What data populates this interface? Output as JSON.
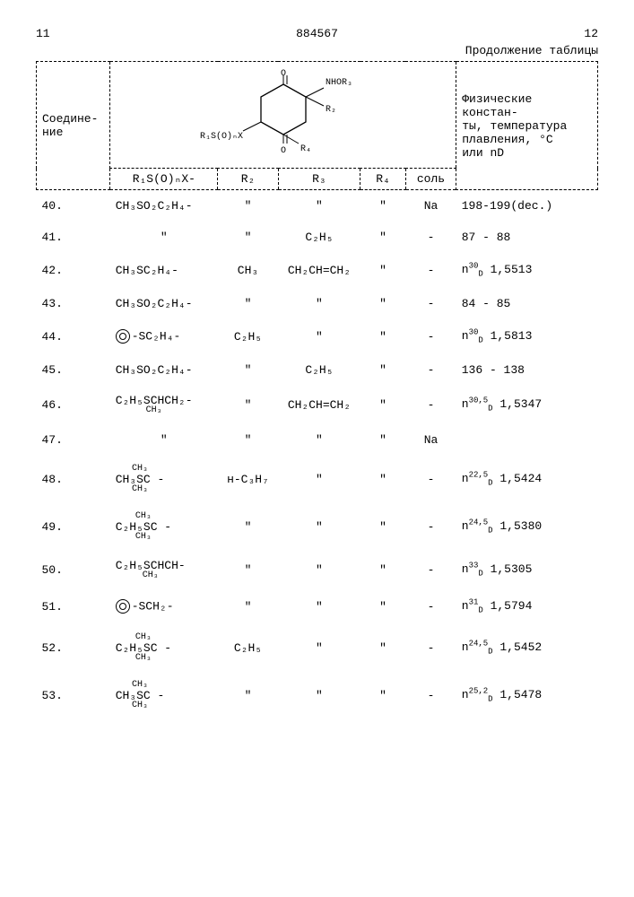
{
  "header": {
    "left_page": "11",
    "doc_number": "884567",
    "right_page": "12",
    "continuation": "Продолжение таблицы"
  },
  "columns": {
    "compound": "Соедине-\nние",
    "r1": "R₁S(O)ₙX-",
    "r2": "R₂",
    "r3": "R₃",
    "r4": "R₄",
    "salt": "соль",
    "phys": "Физические констан-\nты, температура\nплавления, °С\nили  nD"
  },
  "structure_labels": {
    "nw": "R₁S(O)ₙX",
    "r2": "R₂",
    "r3": "NHOR₃",
    "r4": "R₄",
    "o1": "O",
    "o2": "O"
  },
  "rows": [
    {
      "n": "40.",
      "r1": "CH₃SO₂C₂H₄-",
      "r2": "\"",
      "r3": "\"",
      "r4": "\"",
      "salt": "Na",
      "phys": "198-199(dec.)"
    },
    {
      "n": "41.",
      "r1": "\"",
      "r2": "\"",
      "r3": "C₂H₅",
      "r4": "\"",
      "salt": "-",
      "phys": "87 - 88"
    },
    {
      "n": "42.",
      "r1": "CH₃SC₂H₄-",
      "r2": "CH₃",
      "r3": "CH₂CH=CH₂",
      "r4": "\"",
      "salt": "-",
      "phys_nd": {
        "temp": "30",
        "val": "1,5513"
      }
    },
    {
      "n": "43.",
      "r1": "CH₃SO₂C₂H₄-",
      "r2": "\"",
      "r3": "\"",
      "r4": "\"",
      "salt": "-",
      "phys": "84 - 85"
    },
    {
      "n": "44.",
      "r1_phenyl": true,
      "r1": "-SC₂H₄-",
      "r2": "C₂H₅",
      "r3": "\"",
      "r4": "\"",
      "salt": "-",
      "phys_nd": {
        "temp": "30",
        "val": "1,5813"
      }
    },
    {
      "n": "45.",
      "r1": "CH₃SO₂C₂H₄-",
      "r2": "\"",
      "r3": "C₂H₅",
      "r4": "\"",
      "salt": "-",
      "phys": "136 - 138"
    },
    {
      "n": "46.",
      "r1_branch": {
        "mid": "C₂H₅SCHCH₂-",
        "bot": "CH₃"
      },
      "r2": "\"",
      "r3": "CH₂CH=CH₂",
      "r4": "\"",
      "salt": "-",
      "phys_nd": {
        "temp": "30,5",
        "val": "1,5347"
      }
    },
    {
      "n": "47.",
      "r1": "\"",
      "r2": "\"",
      "r3": "\"",
      "r4": "\"",
      "salt": "Na",
      "phys": ""
    },
    {
      "n": "48.",
      "r1_branch": {
        "top": "CH₃",
        "mid": "CH₃SC -",
        "bot": "CH₃"
      },
      "r2": "н-C₃H₇",
      "r3": "\"",
      "r4": "\"",
      "salt": "-",
      "phys_nd": {
        "temp": "22,5",
        "val": "1,5424"
      }
    },
    {
      "n": "49.",
      "r1_branch": {
        "mid": "C₂H₅SC -",
        "top": "CH₃",
        "bot": "CH₃"
      },
      "r2": "\"",
      "r3": "\"",
      "r4": "\"",
      "salt": "-",
      "phys_nd": {
        "temp": "24,5",
        "val": "1,5380"
      }
    },
    {
      "n": "50.",
      "r1_branch": {
        "mid": "C₂H₅SCHCH-",
        "bot": "CH₃"
      },
      "r2": "\"",
      "r3": "\"",
      "r4": "\"",
      "salt": "-",
      "phys_nd": {
        "temp": "33",
        "val": "1,5305"
      }
    },
    {
      "n": "51.",
      "r1_phenyl": true,
      "r1": "-SCH₂-",
      "r2": "\"",
      "r3": "\"",
      "r4": "\"",
      "salt": "-",
      "phys_nd": {
        "temp": "31",
        "val": "1,5794"
      }
    },
    {
      "n": "52.",
      "r1_branch": {
        "top": "CH₃",
        "mid": "C₂H₅SC -",
        "bot": "CH₃"
      },
      "r2": "C₂H₅",
      "r3": "\"",
      "r4": "\"",
      "salt": "-",
      "phys_nd": {
        "temp": "24,5",
        "val": "1,5452"
      }
    },
    {
      "n": "53.",
      "r1_branch": {
        "top": "CH₃",
        "mid": "CH₃SC -",
        "bot": "CH₃"
      },
      "r2": "\"",
      "r3": "\"",
      "r4": "\"",
      "salt": "-",
      "phys_nd": {
        "temp": "25,2",
        "val": "1,5478"
      }
    }
  ]
}
